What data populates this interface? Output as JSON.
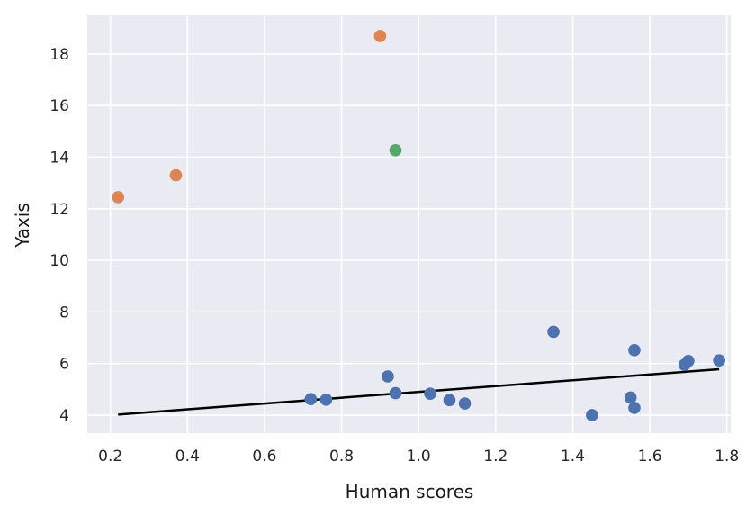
{
  "chart_data": {
    "type": "scatter",
    "title": "",
    "xlabel": "Human scores",
    "ylabel": "Yaxis",
    "xlim": [
      0.14,
      1.81
    ],
    "ylim": [
      3.3,
      19.5
    ],
    "xticks": [
      0.2,
      0.4,
      0.6,
      0.8,
      1.0,
      1.2,
      1.4,
      1.6,
      1.8
    ],
    "xtick_labels": [
      "0.2",
      "0.4",
      "0.6",
      "0.8",
      "1.0",
      "1.2",
      "1.4",
      "1.6",
      "1.8"
    ],
    "yticks": [
      4,
      6,
      8,
      10,
      12,
      14,
      16,
      18
    ],
    "ytick_labels": [
      "4",
      "6",
      "8",
      "10",
      "12",
      "14",
      "16",
      "18"
    ],
    "grid": true,
    "background": "#eaeaf2",
    "series": [
      {
        "color": "#4c72b0",
        "points": [
          {
            "x": 0.72,
            "y": 4.62
          },
          {
            "x": 0.76,
            "y": 4.6
          },
          {
            "x": 0.92,
            "y": 5.5
          },
          {
            "x": 0.94,
            "y": 4.85
          },
          {
            "x": 1.03,
            "y": 4.83
          },
          {
            "x": 1.08,
            "y": 4.58
          },
          {
            "x": 1.12,
            "y": 4.45
          },
          {
            "x": 1.35,
            "y": 7.23
          },
          {
            "x": 1.45,
            "y": 4.0
          },
          {
            "x": 1.55,
            "y": 4.68
          },
          {
            "x": 1.56,
            "y": 4.28
          },
          {
            "x": 1.56,
            "y": 6.52
          },
          {
            "x": 1.69,
            "y": 5.95
          },
          {
            "x": 1.7,
            "y": 6.1
          },
          {
            "x": 1.78,
            "y": 6.12
          }
        ]
      },
      {
        "color": "#dd8452",
        "points": [
          {
            "x": 0.22,
            "y": 12.45
          },
          {
            "x": 0.37,
            "y": 13.3
          },
          {
            "x": 0.9,
            "y": 18.7
          }
        ]
      },
      {
        "color": "#55a868",
        "points": [
          {
            "x": 0.94,
            "y": 14.27
          }
        ]
      }
    ],
    "trendline": {
      "color": "#000000",
      "points": [
        {
          "x": 0.22,
          "y": 4.02
        },
        {
          "x": 1.78,
          "y": 5.78
        }
      ]
    }
  }
}
